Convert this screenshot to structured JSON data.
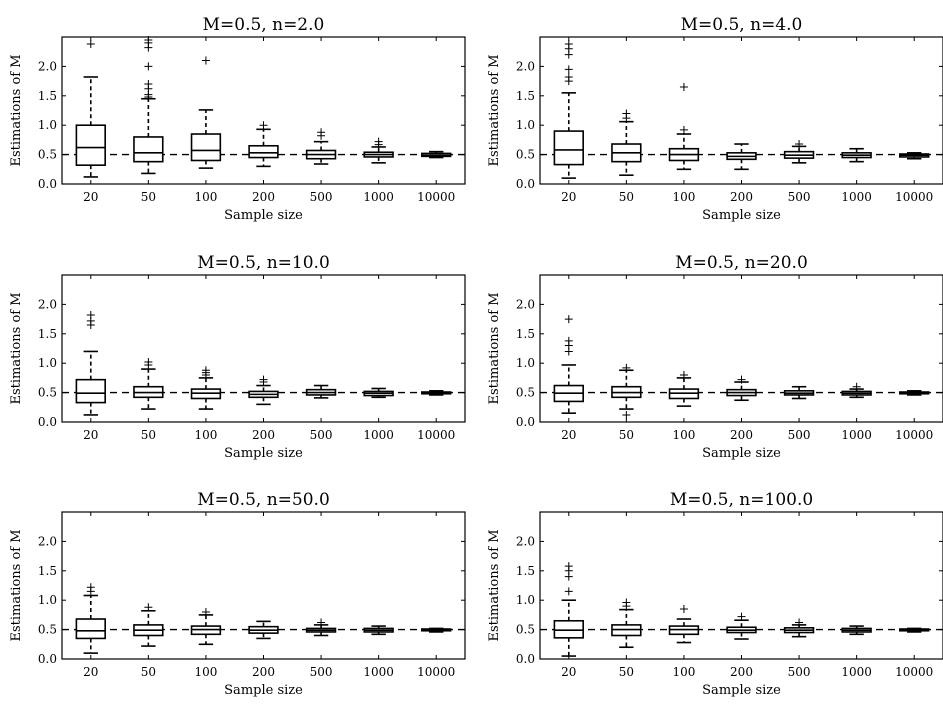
{
  "chart_data": [
    {
      "type": "boxplot",
      "title": "M=0.5, n=2.0",
      "xlabel": "Sample size",
      "ylabel": "Estimations of M",
      "ylim": [
        0,
        2.5
      ],
      "yticks": [
        "0.0",
        "0.5",
        "1.0",
        "1.5",
        "2.0"
      ],
      "categories": [
        "20",
        "50",
        "100",
        "200",
        "500",
        "1000",
        "10000"
      ],
      "reference_line": 0.5,
      "boxes": [
        {
          "whislo": 0.12,
          "q1": 0.32,
          "med": 0.62,
          "q3": 1.0,
          "whishi": 1.82,
          "fliers": [
            2.38
          ]
        },
        {
          "whislo": 0.18,
          "q1": 0.38,
          "med": 0.53,
          "q3": 0.8,
          "whishi": 1.45,
          "fliers": [
            1.48,
            1.52,
            1.62,
            1.7,
            2.0,
            2.32,
            2.4,
            2.45
          ]
        },
        {
          "whislo": 0.27,
          "q1": 0.4,
          "med": 0.57,
          "q3": 0.85,
          "whishi": 1.26,
          "fliers": [
            2.1
          ]
        },
        {
          "whislo": 0.3,
          "q1": 0.45,
          "med": 0.53,
          "q3": 0.65,
          "whishi": 0.93,
          "fliers": [
            1.0
          ]
        },
        {
          "whislo": 0.34,
          "q1": 0.43,
          "med": 0.5,
          "q3": 0.57,
          "whishi": 0.72,
          "fliers": [
            0.82,
            0.88
          ]
        },
        {
          "whislo": 0.36,
          "q1": 0.46,
          "med": 0.5,
          "q3": 0.54,
          "whishi": 0.63,
          "fliers": [
            0.67,
            0.72
          ]
        },
        {
          "whislo": 0.45,
          "q1": 0.47,
          "med": 0.49,
          "q3": 0.52,
          "whishi": 0.55,
          "fliers": []
        }
      ]
    },
    {
      "type": "boxplot",
      "title": "M=0.5, n=4.0",
      "xlabel": "Sample size",
      "ylabel": "Estimations of M",
      "ylim": [
        0,
        2.5
      ],
      "yticks": [
        "0.0",
        "0.5",
        "1.0",
        "1.5",
        "2.0"
      ],
      "categories": [
        "20",
        "50",
        "100",
        "200",
        "500",
        "1000",
        "10000"
      ],
      "reference_line": 0.5,
      "boxes": [
        {
          "whislo": 0.1,
          "q1": 0.33,
          "med": 0.58,
          "q3": 0.9,
          "whishi": 1.55,
          "fliers": [
            1.75,
            1.82,
            1.95,
            2.2,
            2.3,
            2.38
          ]
        },
        {
          "whislo": 0.15,
          "q1": 0.38,
          "med": 0.53,
          "q3": 0.68,
          "whishi": 1.06,
          "fliers": [
            1.12,
            1.2
          ]
        },
        {
          "whislo": 0.25,
          "q1": 0.4,
          "med": 0.5,
          "q3": 0.6,
          "whishi": 0.85,
          "fliers": [
            0.92,
            1.65
          ]
        },
        {
          "whislo": 0.25,
          "q1": 0.42,
          "med": 0.47,
          "q3": 0.53,
          "whishi": 0.68,
          "fliers": []
        },
        {
          "whislo": 0.36,
          "q1": 0.44,
          "med": 0.49,
          "q3": 0.55,
          "whishi": 0.64,
          "fliers": [
            0.68
          ]
        },
        {
          "whislo": 0.38,
          "q1": 0.45,
          "med": 0.49,
          "q3": 0.53,
          "whishi": 0.6,
          "fliers": []
        },
        {
          "whislo": 0.43,
          "q1": 0.46,
          "med": 0.49,
          "q3": 0.51,
          "whishi": 0.53,
          "fliers": []
        }
      ]
    },
    {
      "type": "boxplot",
      "title": "M=0.5, n=10.0",
      "xlabel": "Sample size",
      "ylabel": "Estimations of M",
      "ylim": [
        0,
        2.5
      ],
      "yticks": [
        "0.0",
        "0.5",
        "1.0",
        "1.5",
        "2.0"
      ],
      "categories": [
        "20",
        "50",
        "100",
        "200",
        "500",
        "1000",
        "10000"
      ],
      "reference_line": 0.5,
      "boxes": [
        {
          "whislo": 0.12,
          "q1": 0.33,
          "med": 0.49,
          "q3": 0.72,
          "whishi": 1.2,
          "fliers": [
            1.65,
            1.72,
            1.82
          ]
        },
        {
          "whislo": 0.22,
          "q1": 0.42,
          "med": 0.5,
          "q3": 0.6,
          "whishi": 0.9,
          "fliers": [
            0.97,
            1.02
          ]
        },
        {
          "whislo": 0.22,
          "q1": 0.4,
          "med": 0.49,
          "q3": 0.56,
          "whishi": 0.75,
          "fliers": [
            0.8,
            0.84,
            0.88
          ]
        },
        {
          "whislo": 0.3,
          "q1": 0.42,
          "med": 0.47,
          "q3": 0.52,
          "whishi": 0.62,
          "fliers": [
            0.68,
            0.72
          ]
        },
        {
          "whislo": 0.41,
          "q1": 0.46,
          "med": 0.5,
          "q3": 0.55,
          "whishi": 0.62,
          "fliers": []
        },
        {
          "whislo": 0.42,
          "q1": 0.45,
          "med": 0.49,
          "q3": 0.52,
          "whishi": 0.57,
          "fliers": []
        },
        {
          "whislo": 0.46,
          "q1": 0.48,
          "med": 0.49,
          "q3": 0.51,
          "whishi": 0.53,
          "fliers": []
        }
      ]
    },
    {
      "type": "boxplot",
      "title": "M=0.5, n=20.0",
      "xlabel": "Sample size",
      "ylabel": "Estimations of M",
      "ylim": [
        0,
        2.5
      ],
      "yticks": [
        "0.0",
        "0.5",
        "1.0",
        "1.5",
        "2.0"
      ],
      "categories": [
        "20",
        "50",
        "100",
        "200",
        "500",
        "1000",
        "10000"
      ],
      "reference_line": 0.5,
      "boxes": [
        {
          "whislo": 0.15,
          "q1": 0.35,
          "med": 0.49,
          "q3": 0.62,
          "whishi": 0.97,
          "fliers": [
            1.2,
            1.3,
            1.38,
            1.75
          ]
        },
        {
          "whislo": 0.22,
          "q1": 0.42,
          "med": 0.5,
          "q3": 0.6,
          "whishi": 0.88,
          "fliers": [
            0.12,
            0.92
          ]
        },
        {
          "whislo": 0.27,
          "q1": 0.4,
          "med": 0.49,
          "q3": 0.56,
          "whishi": 0.75,
          "fliers": [
            0.8
          ]
        },
        {
          "whislo": 0.37,
          "q1": 0.45,
          "med": 0.5,
          "q3": 0.55,
          "whishi": 0.68,
          "fliers": [
            0.72
          ]
        },
        {
          "whislo": 0.4,
          "q1": 0.46,
          "med": 0.49,
          "q3": 0.53,
          "whishi": 0.6,
          "fliers": []
        },
        {
          "whislo": 0.42,
          "q1": 0.46,
          "med": 0.49,
          "q3": 0.52,
          "whishi": 0.56,
          "fliers": [
            0.6
          ]
        },
        {
          "whislo": 0.46,
          "q1": 0.48,
          "med": 0.49,
          "q3": 0.51,
          "whishi": 0.53,
          "fliers": []
        }
      ]
    },
    {
      "type": "boxplot",
      "title": "M=0.5, n=50.0",
      "xlabel": "Sample size",
      "ylabel": "Estimations of M",
      "ylim": [
        0,
        2.5
      ],
      "yticks": [
        "0.0",
        "0.5",
        "1.0",
        "1.5",
        "2.0"
      ],
      "categories": [
        "20",
        "50",
        "100",
        "200",
        "500",
        "1000",
        "10000"
      ],
      "reference_line": 0.5,
      "boxes": [
        {
          "whislo": 0.1,
          "q1": 0.35,
          "med": 0.48,
          "q3": 0.68,
          "whishi": 1.08,
          "fliers": [
            1.15,
            1.22
          ]
        },
        {
          "whislo": 0.22,
          "q1": 0.4,
          "med": 0.49,
          "q3": 0.58,
          "whishi": 0.82,
          "fliers": [
            0.88
          ]
        },
        {
          "whislo": 0.25,
          "q1": 0.42,
          "med": 0.5,
          "q3": 0.56,
          "whishi": 0.75,
          "fliers": [
            0.8
          ]
        },
        {
          "whislo": 0.35,
          "q1": 0.44,
          "med": 0.49,
          "q3": 0.55,
          "whishi": 0.64,
          "fliers": []
        },
        {
          "whislo": 0.4,
          "q1": 0.46,
          "med": 0.49,
          "q3": 0.52,
          "whishi": 0.58,
          "fliers": [
            0.62
          ]
        },
        {
          "whislo": 0.42,
          "q1": 0.46,
          "med": 0.49,
          "q3": 0.52,
          "whishi": 0.56,
          "fliers": []
        },
        {
          "whislo": 0.46,
          "q1": 0.48,
          "med": 0.49,
          "q3": 0.51,
          "whishi": 0.52,
          "fliers": []
        }
      ]
    },
    {
      "type": "boxplot",
      "title": "M=0.5, n=100.0",
      "xlabel": "Sample size",
      "ylabel": "Estimations of M",
      "ylim": [
        0,
        2.5
      ],
      "yticks": [
        "0.0",
        "0.5",
        "1.0",
        "1.5",
        "2.0"
      ],
      "categories": [
        "20",
        "50",
        "100",
        "200",
        "500",
        "1000",
        "10000"
      ],
      "reference_line": 0.5,
      "boxes": [
        {
          "whislo": 0.05,
          "q1": 0.36,
          "med": 0.49,
          "q3": 0.65,
          "whishi": 1.0,
          "fliers": [
            1.15,
            1.4,
            1.5,
            1.58
          ]
        },
        {
          "whislo": 0.2,
          "q1": 0.4,
          "med": 0.5,
          "q3": 0.58,
          "whishi": 0.84,
          "fliers": [
            0.9,
            0.96
          ]
        },
        {
          "whislo": 0.28,
          "q1": 0.42,
          "med": 0.5,
          "q3": 0.56,
          "whishi": 0.68,
          "fliers": [
            0.85
          ]
        },
        {
          "whislo": 0.34,
          "q1": 0.45,
          "med": 0.49,
          "q3": 0.54,
          "whishi": 0.66,
          "fliers": [
            0.72
          ]
        },
        {
          "whislo": 0.38,
          "q1": 0.45,
          "med": 0.49,
          "q3": 0.53,
          "whishi": 0.58,
          "fliers": [
            0.62
          ]
        },
        {
          "whislo": 0.42,
          "q1": 0.46,
          "med": 0.49,
          "q3": 0.52,
          "whishi": 0.56,
          "fliers": []
        },
        {
          "whislo": 0.46,
          "q1": 0.48,
          "med": 0.49,
          "q3": 0.51,
          "whishi": 0.52,
          "fliers": []
        }
      ]
    }
  ]
}
